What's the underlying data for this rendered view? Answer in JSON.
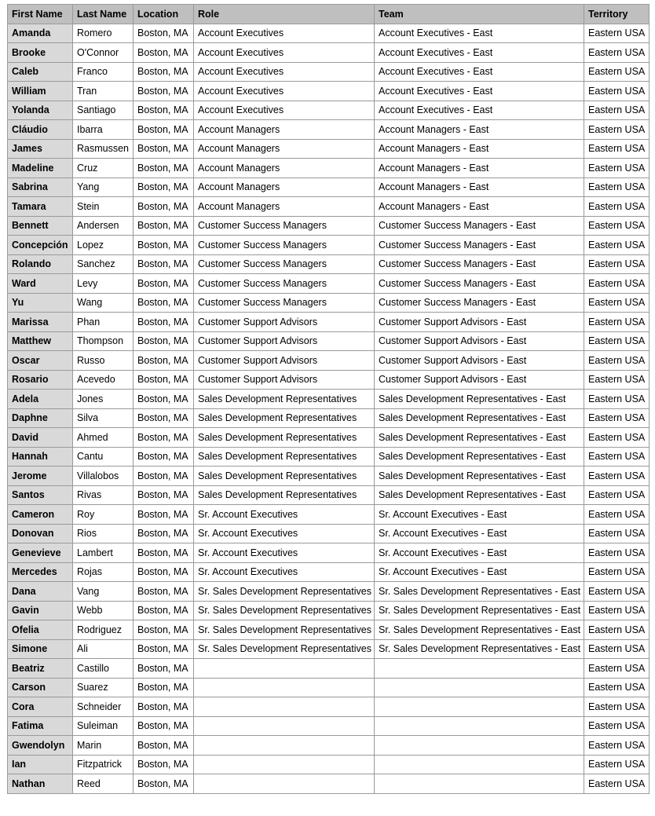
{
  "colors": {
    "header_bg": "#bfbfbf",
    "first_column_bg": "#d9d9d9",
    "grid": "#9a9a9a"
  },
  "columns": [
    "First Name",
    "Last Name",
    "Location",
    "Role",
    "Team",
    "Territory"
  ],
  "rows": [
    [
      "Amanda",
      "Romero",
      "Boston, MA",
      "Account Executives",
      "Account Executives - East",
      "Eastern USA"
    ],
    [
      "Brooke",
      "O'Connor",
      "Boston, MA",
      "Account Executives",
      "Account Executives - East",
      "Eastern USA"
    ],
    [
      "Caleb",
      "Franco",
      "Boston, MA",
      "Account Executives",
      "Account Executives - East",
      "Eastern USA"
    ],
    [
      "William",
      "Tran",
      "Boston, MA",
      "Account Executives",
      "Account Executives - East",
      "Eastern USA"
    ],
    [
      "Yolanda",
      "Santiago",
      "Boston, MA",
      "Account Executives",
      "Account Executives - East",
      "Eastern USA"
    ],
    [
      "Cláudio",
      "Ibarra",
      "Boston, MA",
      "Account Managers",
      "Account Managers - East",
      "Eastern USA"
    ],
    [
      "James",
      "Rasmussen",
      "Boston, MA",
      "Account Managers",
      "Account Managers - East",
      "Eastern USA"
    ],
    [
      "Madeline",
      "Cruz",
      "Boston, MA",
      "Account Managers",
      "Account Managers - East",
      "Eastern USA"
    ],
    [
      "Sabrina",
      "Yang",
      "Boston, MA",
      "Account Managers",
      "Account Managers - East",
      "Eastern USA"
    ],
    [
      "Tamara",
      "Stein",
      "Boston, MA",
      "Account Managers",
      "Account Managers - East",
      "Eastern USA"
    ],
    [
      "Bennett",
      "Andersen",
      "Boston, MA",
      "Customer Success Managers",
      "Customer Success Managers - East",
      "Eastern USA"
    ],
    [
      "Concepción",
      "Lopez",
      "Boston, MA",
      "Customer Success Managers",
      "Customer Success Managers - East",
      "Eastern USA"
    ],
    [
      "Rolando",
      "Sanchez",
      "Boston, MA",
      "Customer Success Managers",
      "Customer Success Managers - East",
      "Eastern USA"
    ],
    [
      "Ward",
      "Levy",
      "Boston, MA",
      "Customer Success Managers",
      "Customer Success Managers - East",
      "Eastern USA"
    ],
    [
      "Yu",
      "Wang",
      "Boston, MA",
      "Customer Success Managers",
      "Customer Success Managers - East",
      "Eastern USA"
    ],
    [
      "Marissa",
      "Phan",
      "Boston, MA",
      "Customer Support Advisors",
      "Customer Support Advisors - East",
      "Eastern USA"
    ],
    [
      "Matthew",
      "Thompson",
      "Boston, MA",
      "Customer Support Advisors",
      "Customer Support Advisors - East",
      "Eastern USA"
    ],
    [
      "Oscar",
      "Russo",
      "Boston, MA",
      "Customer Support Advisors",
      "Customer Support Advisors - East",
      "Eastern USA"
    ],
    [
      "Rosario",
      "Acevedo",
      "Boston, MA",
      "Customer Support Advisors",
      "Customer Support Advisors - East",
      "Eastern USA"
    ],
    [
      "Adela",
      "Jones",
      "Boston, MA",
      "Sales Development Representatives",
      "Sales Development Representatives - East",
      "Eastern USA"
    ],
    [
      "Daphne",
      "Silva",
      "Boston, MA",
      "Sales Development Representatives",
      "Sales Development Representatives - East",
      "Eastern USA"
    ],
    [
      "David",
      "Ahmed",
      "Boston, MA",
      "Sales Development Representatives",
      "Sales Development Representatives - East",
      "Eastern USA"
    ],
    [
      "Hannah",
      "Cantu",
      "Boston, MA",
      "Sales Development Representatives",
      "Sales Development Representatives - East",
      "Eastern USA"
    ],
    [
      "Jerome",
      "Villalobos",
      "Boston, MA",
      "Sales Development Representatives",
      "Sales Development Representatives - East",
      "Eastern USA"
    ],
    [
      "Santos",
      "Rivas",
      "Boston, MA",
      "Sales Development Representatives",
      "Sales Development Representatives - East",
      "Eastern USA"
    ],
    [
      "Cameron",
      "Roy",
      "Boston, MA",
      "Sr. Account Executives",
      "Sr. Account Executives - East",
      "Eastern USA"
    ],
    [
      "Donovan",
      "Rios",
      "Boston, MA",
      "Sr. Account Executives",
      "Sr. Account Executives - East",
      "Eastern USA"
    ],
    [
      "Genevieve",
      "Lambert",
      "Boston, MA",
      "Sr. Account Executives",
      "Sr. Account Executives - East",
      "Eastern USA"
    ],
    [
      "Mercedes",
      "Rojas",
      "Boston, MA",
      "Sr. Account Executives",
      "Sr. Account Executives - East",
      "Eastern USA"
    ],
    [
      "Dana",
      "Vang",
      "Boston, MA",
      "Sr. Sales Development Representatives",
      "Sr. Sales Development Representatives - East",
      "Eastern USA"
    ],
    [
      "Gavin",
      "Webb",
      "Boston, MA",
      "Sr. Sales Development Representatives",
      "Sr. Sales Development Representatives - East",
      "Eastern USA"
    ],
    [
      "Ofelia",
      "Rodriguez",
      "Boston, MA",
      "Sr. Sales Development Representatives",
      "Sr. Sales Development Representatives - East",
      "Eastern USA"
    ],
    [
      "Simone",
      "Ali",
      "Boston, MA",
      "Sr. Sales Development Representatives",
      "Sr. Sales Development Representatives - East",
      "Eastern USA"
    ],
    [
      "Beatriz",
      "Castillo",
      "Boston, MA",
      "",
      "",
      "Eastern USA"
    ],
    [
      "Carson",
      "Suarez",
      "Boston, MA",
      "",
      "",
      "Eastern USA"
    ],
    [
      "Cora",
      "Schneider",
      "Boston, MA",
      "",
      "",
      "Eastern USA"
    ],
    [
      "Fatima",
      "Suleiman",
      "Boston, MA",
      "",
      "",
      "Eastern USA"
    ],
    [
      "Gwendolyn",
      "Marin",
      "Boston, MA",
      "",
      "",
      "Eastern USA"
    ],
    [
      "Ian",
      "Fitzpatrick",
      "Boston, MA",
      "",
      "",
      "Eastern USA"
    ],
    [
      "Nathan",
      "Reed",
      "Boston, MA",
      "",
      "",
      "Eastern USA"
    ]
  ]
}
